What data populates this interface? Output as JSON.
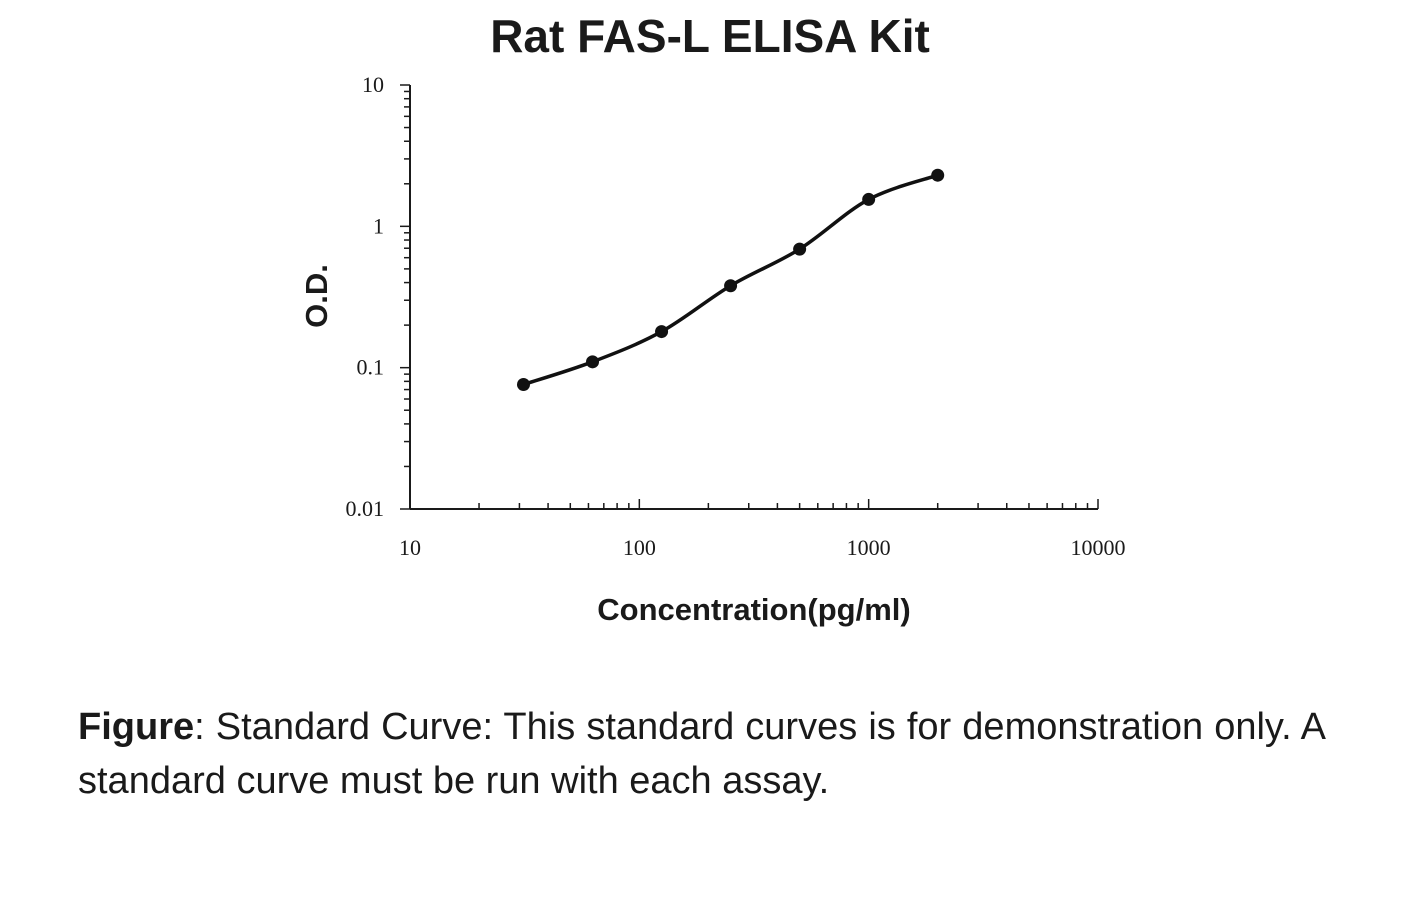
{
  "chart_data": {
    "type": "scatter",
    "title": "Rat FAS-L ELISA Kit",
    "xlabel": "Concentration(pg/ml)",
    "ylabel": "O.D.",
    "xscale": "log",
    "yscale": "log",
    "xlim": [
      10,
      10000
    ],
    "ylim": [
      0.01,
      10
    ],
    "xticks": [
      "10",
      "100",
      "1000",
      "10000"
    ],
    "yticks": [
      "0.01",
      "0.1",
      "1",
      "10"
    ],
    "grid": false,
    "series": [
      {
        "x": [
          31.25,
          62.5,
          125,
          250,
          500,
          1000,
          2000
        ],
        "y": [
          0.076,
          0.11,
          0.18,
          0.38,
          0.69,
          1.55,
          2.3
        ],
        "marker": "circle",
        "fit_curve": true
      }
    ],
    "colors": {
      "marks": "#111111"
    }
  },
  "caption": {
    "bold": "Figure",
    "text": ": Standard Curve: This standard curves is for demonstration only. A standard curve must be run with each assay."
  }
}
